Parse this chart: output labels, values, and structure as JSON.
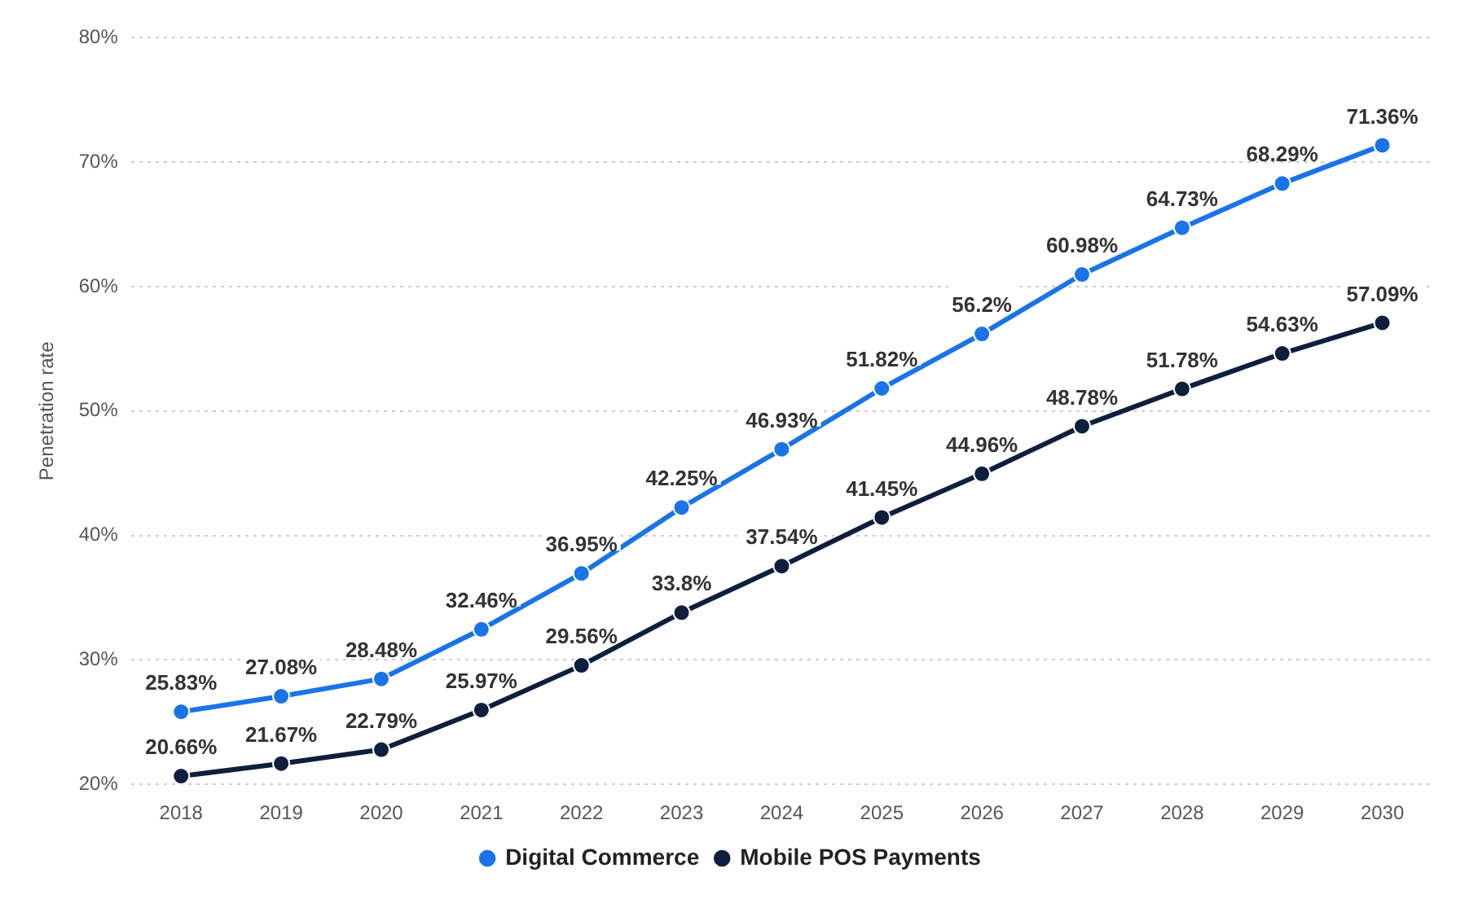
{
  "chart_data": {
    "type": "line",
    "ylabel": "Penetration rate",
    "categories": [
      "2018",
      "2019",
      "2020",
      "2021",
      "2022",
      "2023",
      "2024",
      "2025",
      "2026",
      "2027",
      "2028",
      "2029",
      "2030"
    ],
    "series": [
      {
        "name": "Digital Commerce",
        "color": "#1a73e8",
        "values": [
          25.83,
          27.08,
          28.48,
          32.46,
          36.95,
          42.25,
          46.93,
          51.82,
          56.2,
          60.98,
          64.73,
          68.29,
          71.36
        ],
        "value_labels": [
          "25.83%",
          "27.08%",
          "28.48%",
          "32.46%",
          "36.95%",
          "42.25%",
          "46.93%",
          "51.82%",
          "56.2%",
          "60.98%",
          "64.73%",
          "68.29%",
          "71.36%"
        ]
      },
      {
        "name": "Mobile POS Payments",
        "color": "#0d1f3c",
        "values": [
          20.66,
          21.67,
          22.79,
          25.97,
          29.56,
          33.8,
          37.54,
          41.45,
          44.96,
          48.78,
          51.78,
          54.63,
          57.09
        ],
        "value_labels": [
          "20.66%",
          "21.67%",
          "22.79%",
          "25.97%",
          "29.56%",
          "33.8%",
          "37.54%",
          "41.45%",
          "44.96%",
          "48.78%",
          "51.78%",
          "54.63%",
          "57.09%"
        ]
      }
    ],
    "ylim": [
      20,
      80
    ],
    "yticks": [
      {
        "value": 20,
        "label": "20%"
      },
      {
        "value": 30,
        "label": "30%"
      },
      {
        "value": 40,
        "label": "40%"
      },
      {
        "value": 50,
        "label": "50%"
      },
      {
        "value": 60,
        "label": "60%"
      },
      {
        "value": 70,
        "label": "70%"
      },
      {
        "value": 80,
        "label": "80%"
      }
    ],
    "grid": "y",
    "legend": "bottom",
    "marker": "circle",
    "line_style": "solid"
  }
}
